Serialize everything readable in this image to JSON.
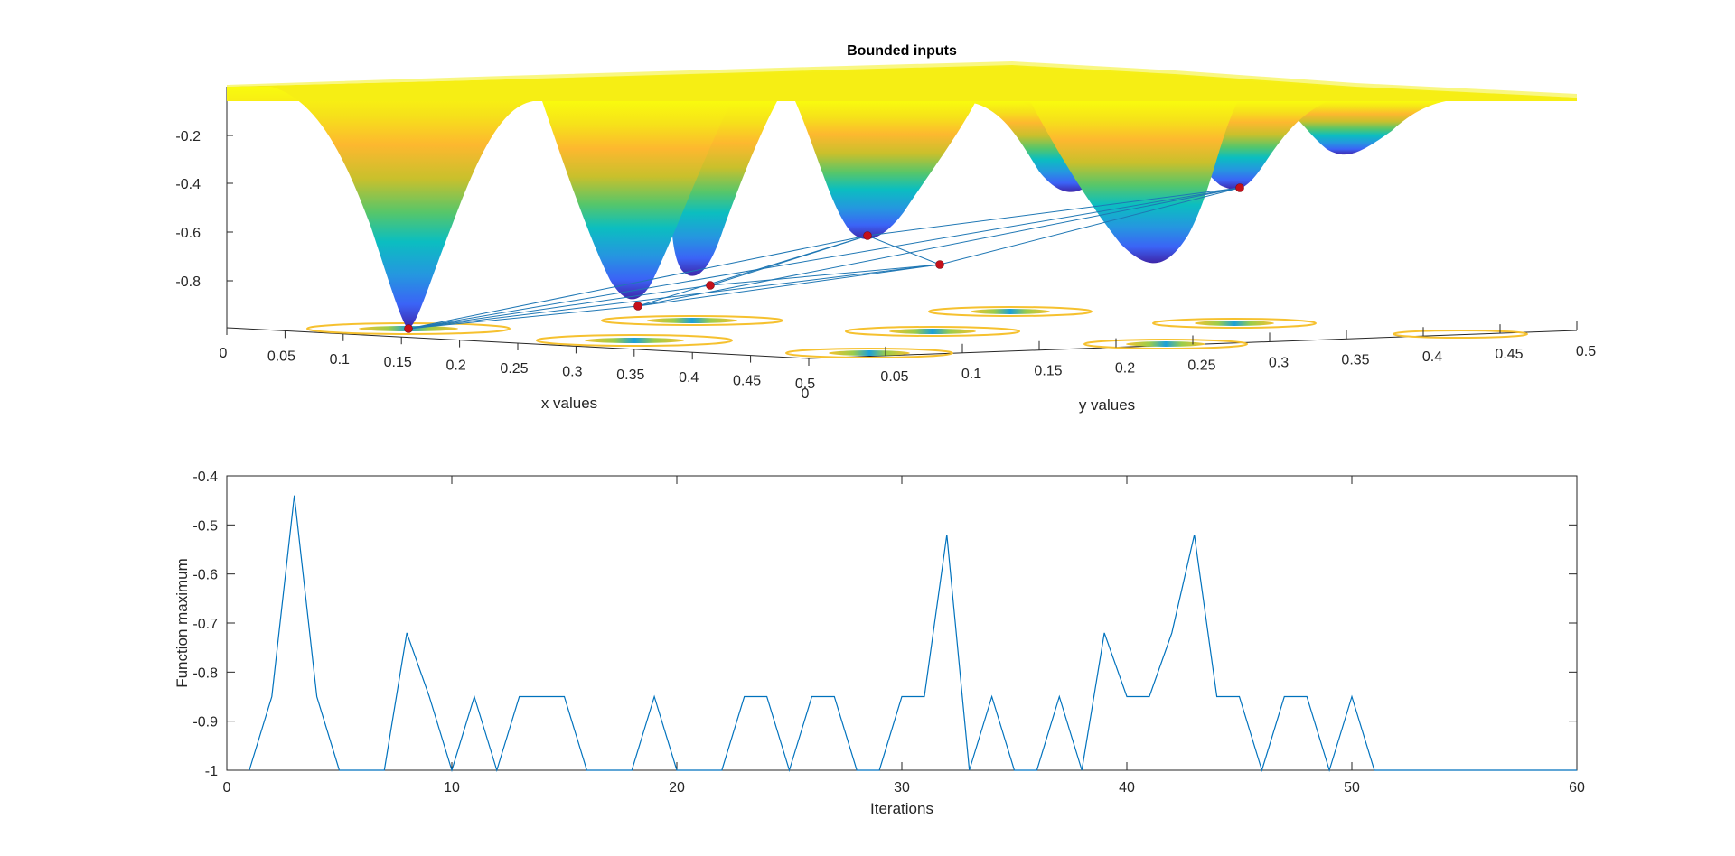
{
  "chart_data": [
    {
      "type": "surface",
      "title": "Bounded inputs",
      "xlabel": "x values",
      "ylabel": "y values",
      "xticks": [
        "0",
        "0.05",
        "0.1",
        "0.15",
        "0.2",
        "0.25",
        "0.3",
        "0.35",
        "0.4",
        "0.45",
        "0.5"
      ],
      "yticks": [
        "0",
        "0.05",
        "0.1",
        "0.15",
        "0.2",
        "0.25",
        "0.3",
        "0.35",
        "0.4",
        "0.45",
        "0.5"
      ],
      "zticks": [
        "-0.2",
        "-0.4",
        "-0.6",
        "-0.8"
      ],
      "xlim": [
        0,
        0.5
      ],
      "ylim": [
        0,
        0.5
      ],
      "zlim": [
        -1,
        0
      ],
      "colormap": "parula",
      "has_contour_projection": true,
      "marker_color": "#c4101a",
      "line_color": "#1f77b4",
      "sampled_minima": [
        {
          "z": -1.0
        },
        {
          "z": -0.9
        },
        {
          "z": -0.82
        },
        {
          "z": -0.62
        },
        {
          "z": -0.74
        },
        {
          "z": -0.42
        }
      ]
    },
    {
      "type": "line",
      "xlabel": "Iterations",
      "ylabel": "Function maximum",
      "xlim": [
        0,
        60
      ],
      "ylim": [
        -1,
        -0.4
      ],
      "xticks": [
        "0",
        "10",
        "20",
        "30",
        "40",
        "50",
        "60"
      ],
      "yticks": [
        "-0.4",
        "-0.5",
        "-0.6",
        "-0.7",
        "-0.8",
        "-0.9",
        "-1"
      ],
      "grid": false,
      "color": "#0072bd",
      "x": [
        1,
        2,
        3,
        4,
        5,
        6,
        7,
        8,
        9,
        10,
        11,
        12,
        13,
        14,
        15,
        16,
        17,
        18,
        19,
        20,
        21,
        22,
        23,
        24,
        25,
        26,
        27,
        28,
        29,
        30,
        31,
        32,
        33,
        34,
        35,
        36,
        37,
        38,
        39,
        40,
        41,
        42,
        43,
        44,
        45,
        46,
        47,
        48,
        49,
        50,
        51,
        52,
        53,
        54,
        55,
        56,
        57,
        58,
        59,
        60
      ],
      "values": [
        -1,
        -0.85,
        -0.44,
        -0.85,
        -1,
        -1,
        -1,
        -0.72,
        -0.85,
        -1,
        -0.85,
        -1,
        -0.85,
        -0.85,
        -0.85,
        -1,
        -1,
        -1,
        -0.85,
        -1,
        -1,
        -1,
        -0.85,
        -0.85,
        -1,
        -0.85,
        -0.85,
        -1,
        -1,
        -0.85,
        -0.85,
        -0.52,
        -1,
        -0.85,
        -1,
        -1,
        -0.85,
        -1,
        -0.72,
        -0.85,
        -0.85,
        -0.72,
        -0.52,
        -0.85,
        -0.85,
        -1,
        -0.85,
        -0.85,
        -1,
        -0.85,
        -1,
        -1,
        -1,
        -1,
        -1,
        -1,
        -1,
        -1,
        -1,
        -1
      ]
    }
  ]
}
